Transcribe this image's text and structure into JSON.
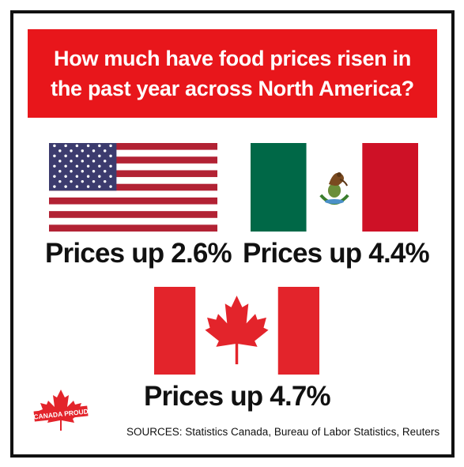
{
  "title": "How much have food prices risen in the past year across North America?",
  "countries": [
    {
      "flag_icon": "us-flag-icon",
      "label": "Prices up 2.6%"
    },
    {
      "flag_icon": "mexico-flag-icon",
      "label": "Prices up 4.4%"
    },
    {
      "flag_icon": "canada-flag-icon",
      "label": "Prices up 4.7%"
    }
  ],
  "logo": {
    "icon": "maple-leaf-icon",
    "text": "CANADA PROUD"
  },
  "sources": "SOURCES: Statistics Canada, Bureau of Labor Statistics, Reuters",
  "colors": {
    "banner": "#e8161b",
    "us_red": "#b22234",
    "us_blue": "#3c3b6e",
    "mx_green": "#006847",
    "mx_red": "#ce1126",
    "ca_red": "#e3242b"
  }
}
